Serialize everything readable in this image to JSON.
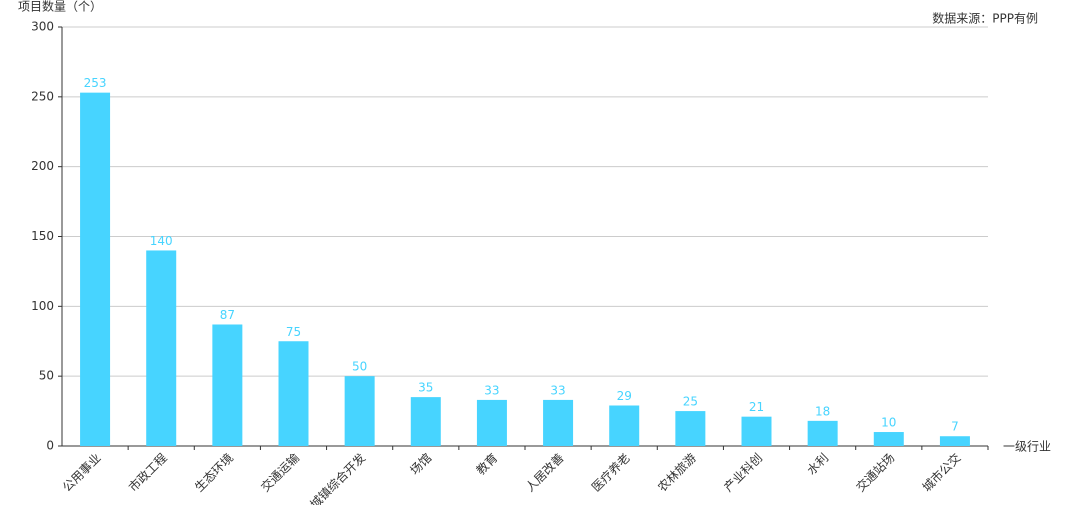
{
  "chart_data": {
    "type": "bar",
    "y_label": "项目数量（个）",
    "x_label": "一级行业",
    "source": "数据来源：PPP有例",
    "categories": [
      "公用事业",
      "市政工程",
      "生态环境",
      "交通运输",
      "城镇综合开发",
      "场馆",
      "教育",
      "人居改善",
      "医疗养老",
      "农林旅游",
      "产业科创",
      "水利",
      "交通站场",
      "城市公交"
    ],
    "values": [
      253,
      140,
      87,
      75,
      50,
      35,
      33,
      33,
      29,
      25,
      21,
      18,
      10,
      7
    ],
    "color": "#47d4ff",
    "ylim": [
      0,
      300
    ],
    "yticks": [
      0,
      50,
      100,
      150,
      200,
      250,
      300
    ],
    "grid": true
  }
}
